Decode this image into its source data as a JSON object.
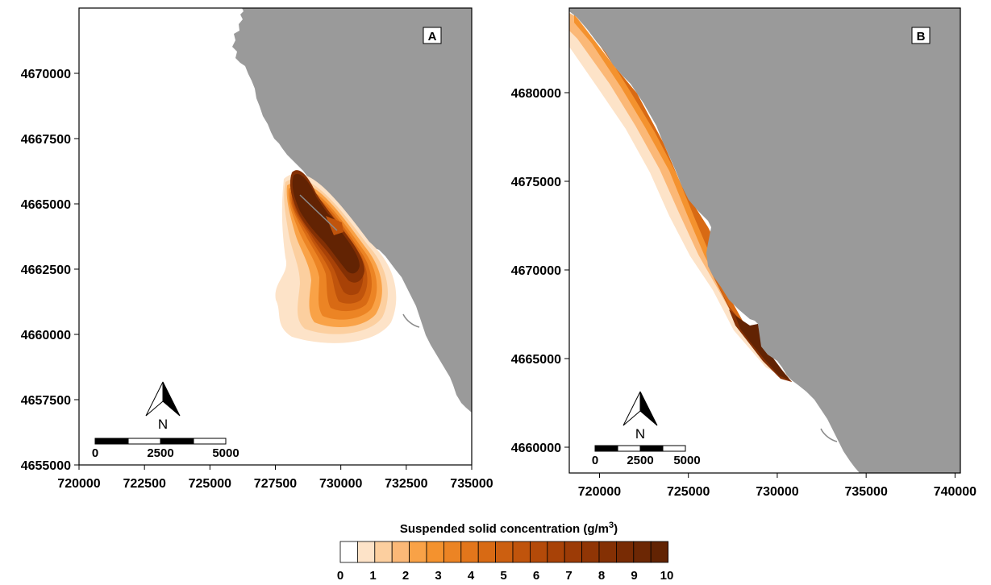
{
  "map": {
    "land_color": "#9a9a9a",
    "water_color": "#ffffff",
    "palette": [
      "#ffffff",
      "#fde3c8",
      "#fccf9f",
      "#fbb877",
      "#f9a247",
      "#f4922e",
      "#ec8424",
      "#e3761b",
      "#d86a14",
      "#cc5f10",
      "#c0540c",
      "#b44a09",
      "#a84207",
      "#9c3b06",
      "#903505",
      "#843004",
      "#782b04",
      "#6c2704",
      "#622303"
    ],
    "panels": [
      {
        "id": "A",
        "label": "A",
        "x_ticks": [
          {
            "value": 720000,
            "label": "720000"
          },
          {
            "value": 722500,
            "label": "722500"
          },
          {
            "value": 725000,
            "label": "725000"
          },
          {
            "value": 727500,
            "label": "727500"
          },
          {
            "value": 730000,
            "label": "730000"
          },
          {
            "value": 732500,
            "label": "732500"
          },
          {
            "value": 735000,
            "label": "735000"
          }
        ],
        "y_ticks": [
          {
            "value": 4655000,
            "label": "4655000"
          },
          {
            "value": 4657500,
            "label": "4657500"
          },
          {
            "value": 4660000,
            "label": "4660000"
          },
          {
            "value": 4662500,
            "label": "4662500"
          },
          {
            "value": 4665000,
            "label": "4665000"
          },
          {
            "value": 4667500,
            "label": "4667500"
          },
          {
            "value": 4670000,
            "label": "4670000"
          }
        ],
        "scale_bar": {
          "labels": [
            "0",
            "2500",
            "5000"
          ]
        },
        "north_label": "N"
      },
      {
        "id": "B",
        "label": "B",
        "x_ticks": [
          {
            "value": 720000,
            "label": "720000"
          },
          {
            "value": 725000,
            "label": "725000"
          },
          {
            "value": 730000,
            "label": "730000"
          },
          {
            "value": 735000,
            "label": "735000"
          },
          {
            "value": 740000,
            "label": "740000"
          }
        ],
        "y_ticks": [
          {
            "value": 4660000,
            "label": "4660000"
          },
          {
            "value": 4665000,
            "label": "4665000"
          },
          {
            "value": 4670000,
            "label": "4670000"
          },
          {
            "value": 4675000,
            "label": "4675000"
          },
          {
            "value": 4680000,
            "label": "4680000"
          }
        ],
        "scale_bar": {
          "labels": [
            "0",
            "2500",
            "5000"
          ]
        },
        "north_label": "N"
      }
    ]
  },
  "legend": {
    "title": "Suspended solid concentration (g/m",
    "title_sup": "3",
    "title_end": ")",
    "ticks": [
      "0",
      "1",
      "2",
      "3",
      "4",
      "5",
      "6",
      "7",
      "8",
      "9",
      "10"
    ]
  }
}
